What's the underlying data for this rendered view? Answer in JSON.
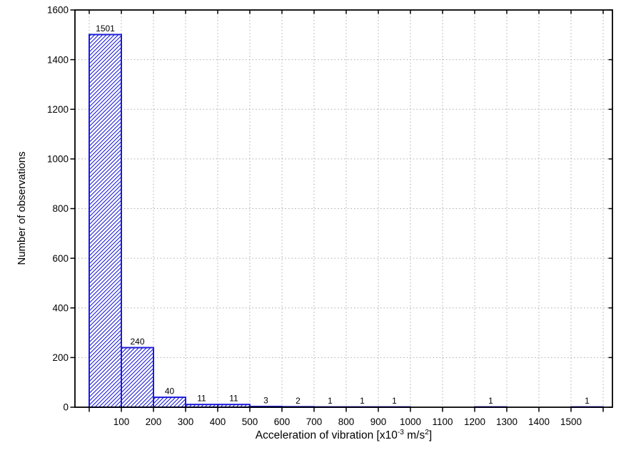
{
  "chart_data": {
    "type": "bar",
    "subtype": "histogram",
    "title": "",
    "ylabel": "Number of observations",
    "xlabel_plain": "Acceleration of vibration [x10^-3 m/s^2]",
    "xlabel_parts": [
      "Acceleration of vibration [x10",
      "-3",
      " m/s",
      "2",
      "]"
    ],
    "bins": {
      "start": 0,
      "width": 100,
      "count": 16
    },
    "categories": [
      "0-100",
      "100-200",
      "200-300",
      "300-400",
      "400-500",
      "500-600",
      "600-700",
      "700-800",
      "800-900",
      "900-1000",
      "1000-1100",
      "1100-1200",
      "1200-1300",
      "1300-1400",
      "1400-1500",
      "1500-1600"
    ],
    "values": [
      1501,
      240,
      40,
      11,
      11,
      3,
      2,
      1,
      1,
      1,
      0,
      0,
      1,
      0,
      0,
      1
    ],
    "x_ticks": [
      100,
      200,
      300,
      400,
      500,
      600,
      700,
      800,
      900,
      1000,
      1100,
      1200,
      1300,
      1400,
      1500
    ],
    "y_ticks": [
      0,
      200,
      400,
      600,
      800,
      1000,
      1200,
      1400,
      1600
    ],
    "xlim": [
      0,
      1600
    ],
    "ylim": [
      0,
      1600
    ],
    "grid": {
      "on": true,
      "style": "dotted",
      "color": "#b0b0b0"
    },
    "legend": {
      "visible": false
    },
    "colors": {
      "bar": "#1c1cdb",
      "axis": "#000000",
      "text": "#000000",
      "background": "#ffffff"
    },
    "bar_style": {
      "fill": "white-with-diagonal-hatch",
      "hatch_direction": "/",
      "stroke_width": 2
    }
  }
}
